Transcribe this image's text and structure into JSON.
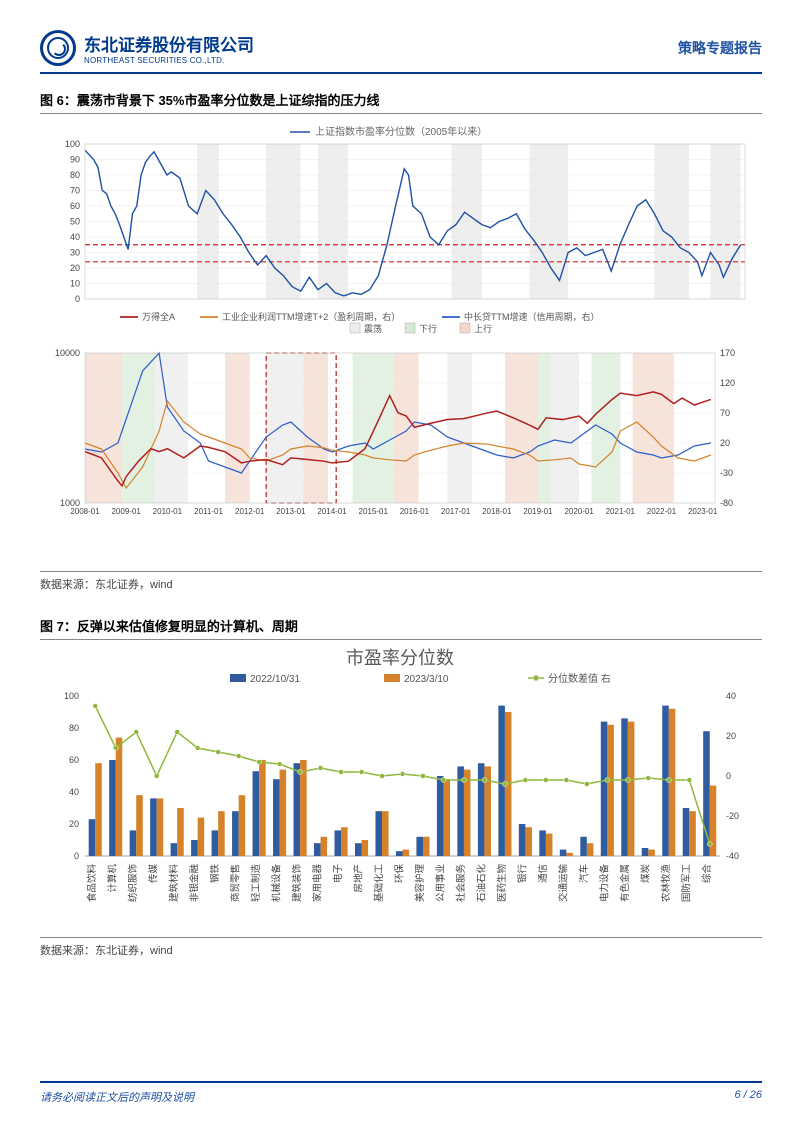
{
  "header": {
    "company_cn": "东北证券股份有限公司",
    "company_en": "NORTHEAST SECURITIES CO.,LTD.",
    "report_type": "策略专题报告"
  },
  "fig6": {
    "title": "图 6：震荡市背景下 35%市盈率分位数是上证综指的压力线",
    "top_chart": {
      "legend": "上证指数市盈率分位数（2005年以来）",
      "legend_color": "#1e50a2",
      "ylim": [
        0,
        100
      ],
      "yticks": [
        0,
        10,
        20,
        30,
        40,
        50,
        60,
        70,
        80,
        90,
        100
      ],
      "ref_lines": [
        24,
        35
      ],
      "ref_color": "#d32020",
      "bg_color": "#ffffff",
      "grid_color": "#e6e6e6",
      "shade_color": "#eeeeee",
      "shade_bands": [
        [
          2010.6,
          2011.1
        ],
        [
          2012.2,
          2013.0
        ],
        [
          2013.4,
          2014.1
        ],
        [
          2016.5,
          2017.2
        ],
        [
          2018.3,
          2019.2
        ],
        [
          2021.2,
          2022.0
        ],
        [
          2022.5,
          2023.2
        ]
      ],
      "xr": [
        2008.0,
        2023.3
      ],
      "series": [
        [
          2008.0,
          96
        ],
        [
          2008.2,
          90
        ],
        [
          2008.3,
          85
        ],
        [
          2008.4,
          70
        ],
        [
          2008.5,
          68
        ],
        [
          2008.6,
          60
        ],
        [
          2008.7,
          55
        ],
        [
          2008.8,
          48
        ],
        [
          2008.9,
          40
        ],
        [
          2009.0,
          32
        ],
        [
          2009.1,
          55
        ],
        [
          2009.2,
          60
        ],
        [
          2009.3,
          80
        ],
        [
          2009.4,
          88
        ],
        [
          2009.5,
          92
        ],
        [
          2009.6,
          95
        ],
        [
          2009.7,
          90
        ],
        [
          2009.8,
          85
        ],
        [
          2009.9,
          80
        ],
        [
          2010.0,
          82
        ],
        [
          2010.2,
          78
        ],
        [
          2010.4,
          60
        ],
        [
          2010.6,
          55
        ],
        [
          2010.8,
          70
        ],
        [
          2011.0,
          64
        ],
        [
          2011.2,
          55
        ],
        [
          2011.4,
          48
        ],
        [
          2011.6,
          40
        ],
        [
          2011.8,
          30
        ],
        [
          2012.0,
          22
        ],
        [
          2012.2,
          28
        ],
        [
          2012.4,
          20
        ],
        [
          2012.6,
          15
        ],
        [
          2012.8,
          8
        ],
        [
          2013.0,
          5
        ],
        [
          2013.2,
          14
        ],
        [
          2013.4,
          6
        ],
        [
          2013.6,
          10
        ],
        [
          2013.8,
          4
        ],
        [
          2014.0,
          2
        ],
        [
          2014.2,
          4
        ],
        [
          2014.4,
          3
        ],
        [
          2014.6,
          6
        ],
        [
          2014.8,
          15
        ],
        [
          2015.0,
          35
        ],
        [
          2015.2,
          60
        ],
        [
          2015.4,
          84
        ],
        [
          2015.5,
          80
        ],
        [
          2015.6,
          60
        ],
        [
          2015.8,
          55
        ],
        [
          2016.0,
          40
        ],
        [
          2016.2,
          35
        ],
        [
          2016.4,
          44
        ],
        [
          2016.6,
          48
        ],
        [
          2016.8,
          56
        ],
        [
          2017.0,
          52
        ],
        [
          2017.2,
          48
        ],
        [
          2017.4,
          46
        ],
        [
          2017.6,
          50
        ],
        [
          2017.8,
          52
        ],
        [
          2018.0,
          55
        ],
        [
          2018.2,
          45
        ],
        [
          2018.4,
          38
        ],
        [
          2018.6,
          30
        ],
        [
          2018.8,
          20
        ],
        [
          2019.0,
          12
        ],
        [
          2019.2,
          30
        ],
        [
          2019.4,
          33
        ],
        [
          2019.6,
          28
        ],
        [
          2019.8,
          30
        ],
        [
          2020.0,
          32
        ],
        [
          2020.2,
          18
        ],
        [
          2020.4,
          35
        ],
        [
          2020.6,
          48
        ],
        [
          2020.8,
          60
        ],
        [
          2021.0,
          64
        ],
        [
          2021.2,
          55
        ],
        [
          2021.4,
          44
        ],
        [
          2021.6,
          40
        ],
        [
          2021.8,
          33
        ],
        [
          2022.0,
          30
        ],
        [
          2022.2,
          24
        ],
        [
          2022.3,
          15
        ],
        [
          2022.5,
          30
        ],
        [
          2022.7,
          22
        ],
        [
          2022.8,
          14
        ],
        [
          2023.0,
          26
        ],
        [
          2023.2,
          35
        ]
      ]
    },
    "bottom_chart": {
      "legends": [
        {
          "label": "万得全A",
          "color": "#b02020"
        },
        {
          "label": "工业企业利润TTM增速T+2（盈利周期，右）",
          "color": "#d6822b"
        },
        {
          "label": "中长贷TTM增速（信用周期，右）",
          "color": "#2b5dc9"
        }
      ],
      "phase_labels": [
        {
          "label": "震荡",
          "color": "#888"
        },
        {
          "label": "下行",
          "color": "#5aa35a"
        },
        {
          "label": "上行",
          "color": "#c97a4a"
        }
      ],
      "y1": {
        "ticks": [
          1000,
          10000
        ],
        "log": true
      },
      "y2": {
        "ticks": [
          -80,
          -30,
          20,
          70,
          120,
          170
        ]
      },
      "xr": [
        2008.0,
        2023.3
      ],
      "xticks": [
        "2008-01",
        "2009-01",
        "2010-01",
        "2011-01",
        "2012-01",
        "2013-01",
        "2014-01",
        "2015-01",
        "2016-01",
        "2017-01",
        "2018-01",
        "2019-01",
        "2020-01",
        "2021-01",
        "2022-01",
        "2023-01"
      ],
      "shade_bands_down": [
        [
          2008.0,
          2008.9
        ],
        [
          2011.4,
          2012.0
        ],
        [
          2013.3,
          2013.9
        ],
        [
          2015.5,
          2016.1
        ],
        [
          2018.2,
          2019.0
        ],
        [
          2021.3,
          2022.3
        ]
      ],
      "shade_bands_side": [
        [
          2009.7,
          2010.5
        ],
        [
          2012.4,
          2013.3
        ],
        [
          2016.8,
          2017.4
        ],
        [
          2019.3,
          2020.0
        ]
      ],
      "shade_bands_up": [
        [
          2008.9,
          2009.7
        ],
        [
          2014.5,
          2015.5
        ],
        [
          2019.0,
          2019.3
        ],
        [
          2020.3,
          2021.0
        ]
      ],
      "dash_box": [
        2012.4,
        2014.1
      ],
      "shade_down_color": "#f2d7cb",
      "shade_side_color": "#eeeeee",
      "shade_up_color": "#d7ebd7",
      "wande": [
        [
          2008.0,
          2200
        ],
        [
          2008.4,
          2000
        ],
        [
          2008.8,
          1400
        ],
        [
          2008.9,
          1300
        ],
        [
          2009.0,
          1500
        ],
        [
          2009.3,
          1900
        ],
        [
          2009.6,
          2300
        ],
        [
          2009.8,
          2200
        ],
        [
          2010.0,
          2300
        ],
        [
          2010.4,
          2000
        ],
        [
          2010.8,
          2400
        ],
        [
          2011.0,
          2350
        ],
        [
          2011.4,
          2200
        ],
        [
          2011.8,
          1850
        ],
        [
          2012.0,
          1900
        ],
        [
          2012.4,
          1950
        ],
        [
          2012.8,
          1800
        ],
        [
          2013.0,
          2000
        ],
        [
          2013.4,
          1950
        ],
        [
          2013.8,
          1900
        ],
        [
          2014.0,
          1850
        ],
        [
          2014.4,
          1900
        ],
        [
          2014.8,
          2300
        ],
        [
          2015.0,
          3000
        ],
        [
          2015.4,
          5200
        ],
        [
          2015.6,
          4000
        ],
        [
          2015.8,
          3800
        ],
        [
          2016.0,
          3200
        ],
        [
          2016.4,
          3400
        ],
        [
          2016.8,
          3600
        ],
        [
          2017.2,
          3650
        ],
        [
          2017.8,
          4000
        ],
        [
          2018.0,
          4100
        ],
        [
          2018.4,
          3700
        ],
        [
          2018.8,
          3300
        ],
        [
          2019.0,
          3100
        ],
        [
          2019.2,
          3700
        ],
        [
          2019.6,
          3600
        ],
        [
          2020.0,
          3800
        ],
        [
          2020.2,
          3400
        ],
        [
          2020.4,
          3900
        ],
        [
          2020.8,
          4900
        ],
        [
          2021.0,
          5400
        ],
        [
          2021.4,
          5200
        ],
        [
          2021.8,
          5500
        ],
        [
          2022.0,
          5300
        ],
        [
          2022.3,
          4600
        ],
        [
          2022.5,
          5000
        ],
        [
          2022.8,
          4500
        ],
        [
          2023.0,
          4700
        ],
        [
          2023.2,
          4900
        ]
      ],
      "profit": [
        [
          2008.0,
          20
        ],
        [
          2008.4,
          10
        ],
        [
          2008.8,
          -30
        ],
        [
          2009.0,
          -55
        ],
        [
          2009.4,
          -20
        ],
        [
          2009.8,
          40
        ],
        [
          2010.0,
          90
        ],
        [
          2010.4,
          55
        ],
        [
          2010.8,
          35
        ],
        [
          2011.0,
          30
        ],
        [
          2011.4,
          20
        ],
        [
          2011.8,
          10
        ],
        [
          2012.0,
          -5
        ],
        [
          2012.4,
          -10
        ],
        [
          2012.8,
          0
        ],
        [
          2013.0,
          10
        ],
        [
          2013.4,
          15
        ],
        [
          2013.8,
          12
        ],
        [
          2014.0,
          8
        ],
        [
          2014.4,
          5
        ],
        [
          2014.8,
          0
        ],
        [
          2015.0,
          -5
        ],
        [
          2015.4,
          -8
        ],
        [
          2015.8,
          -10
        ],
        [
          2016.0,
          0
        ],
        [
          2016.4,
          8
        ],
        [
          2016.8,
          15
        ],
        [
          2017.2,
          20
        ],
        [
          2017.8,
          18
        ],
        [
          2018.0,
          15
        ],
        [
          2018.4,
          10
        ],
        [
          2018.8,
          0
        ],
        [
          2019.0,
          -10
        ],
        [
          2019.4,
          -8
        ],
        [
          2019.8,
          -5
        ],
        [
          2020.0,
          -15
        ],
        [
          2020.4,
          -20
        ],
        [
          2020.8,
          5
        ],
        [
          2021.0,
          40
        ],
        [
          2021.4,
          55
        ],
        [
          2021.8,
          30
        ],
        [
          2022.0,
          15
        ],
        [
          2022.4,
          -5
        ],
        [
          2022.8,
          -10
        ],
        [
          2023.2,
          0
        ]
      ],
      "credit": [
        [
          2008.0,
          10
        ],
        [
          2008.4,
          5
        ],
        [
          2008.8,
          20
        ],
        [
          2009.0,
          60
        ],
        [
          2009.4,
          140
        ],
        [
          2009.8,
          170
        ],
        [
          2010.0,
          80
        ],
        [
          2010.4,
          40
        ],
        [
          2010.8,
          20
        ],
        [
          2011.0,
          -10
        ],
        [
          2011.4,
          -20
        ],
        [
          2011.8,
          -30
        ],
        [
          2012.0,
          -10
        ],
        [
          2012.4,
          30
        ],
        [
          2012.8,
          50
        ],
        [
          2013.0,
          55
        ],
        [
          2013.4,
          30
        ],
        [
          2013.8,
          10
        ],
        [
          2014.0,
          5
        ],
        [
          2014.4,
          15
        ],
        [
          2014.8,
          20
        ],
        [
          2015.0,
          10
        ],
        [
          2015.4,
          25
        ],
        [
          2015.8,
          40
        ],
        [
          2016.0,
          55
        ],
        [
          2016.4,
          50
        ],
        [
          2016.8,
          30
        ],
        [
          2017.2,
          20
        ],
        [
          2017.8,
          5
        ],
        [
          2018.0,
          0
        ],
        [
          2018.4,
          -5
        ],
        [
          2018.8,
          5
        ],
        [
          2019.0,
          15
        ],
        [
          2019.4,
          25
        ],
        [
          2019.8,
          20
        ],
        [
          2020.0,
          30
        ],
        [
          2020.4,
          50
        ],
        [
          2020.8,
          35
        ],
        [
          2021.0,
          20
        ],
        [
          2021.4,
          5
        ],
        [
          2021.8,
          0
        ],
        [
          2022.0,
          -5
        ],
        [
          2022.4,
          0
        ],
        [
          2022.8,
          15
        ],
        [
          2023.2,
          20
        ]
      ]
    },
    "source": "数据来源：东北证券，wind"
  },
  "fig7": {
    "title": "图 7：反弹以来估值修复明显的计算机、周期",
    "chart_title": "市盈率分位数",
    "chart_title_color": "#595959",
    "legends": [
      {
        "label": "2022/10/31",
        "color": "#2e5c9e",
        "type": "bar"
      },
      {
        "label": "2023/3/10",
        "color": "#d6822b",
        "type": "bar"
      },
      {
        "label": "分位数差值 右",
        "color": "#8fb83a",
        "type": "line"
      }
    ],
    "y1": {
      "ticks": [
        0,
        20,
        40,
        60,
        80,
        100
      ]
    },
    "y2": {
      "ticks": [
        -40,
        -20,
        0,
        20,
        40
      ]
    },
    "categories": [
      "食品饮料",
      "计算机",
      "纺织服饰",
      "传媒",
      "建筑材料",
      "非银金融",
      "钢铁",
      "商贸零售",
      "轻工制造",
      "机械设备",
      "建筑装饰",
      "家用电器",
      "电子",
      "房地产",
      "基础化工",
      "环保",
      "美容护理",
      "公用事业",
      "社会服务",
      "石油石化",
      "医药生物",
      "银行",
      "通信",
      "交通运输",
      "汽车",
      "电力设备",
      "有色金属",
      "煤炭",
      "农林牧渔",
      "国防军工",
      "综合"
    ],
    "v2022": [
      23,
      60,
      16,
      36,
      8,
      10,
      16,
      28,
      53,
      48,
      58,
      8,
      16,
      8,
      28,
      3,
      12,
      50,
      56,
      58,
      94,
      20,
      16,
      4,
      12,
      84,
      86,
      5,
      94,
      30,
      78
    ],
    "v2023": [
      58,
      74,
      38,
      36,
      30,
      24,
      28,
      38,
      60,
      54,
      60,
      12,
      18,
      10,
      28,
      4,
      12,
      48,
      54,
      56,
      90,
      18,
      14,
      2,
      8,
      82,
      84,
      4,
      92,
      28,
      44
    ],
    "diff": [
      35,
      14,
      22,
      0,
      22,
      14,
      12,
      10,
      7,
      6,
      2,
      4,
      2,
      2,
      0,
      1,
      0,
      -2,
      -2,
      -2,
      -4,
      -2,
      -2,
      -2,
      -4,
      -2,
      -2,
      -1,
      -2,
      -2,
      -34
    ],
    "source": "数据来源：东北证券，wind"
  },
  "footer": {
    "disclaimer": "请务必阅读正文后的声明及说明",
    "page": "6 / 26"
  }
}
